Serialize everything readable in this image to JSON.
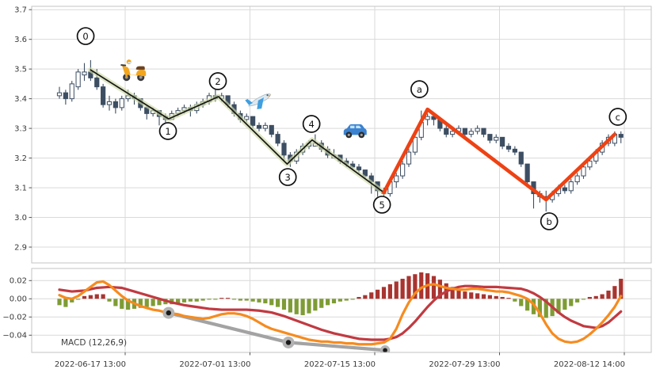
{
  "app": {
    "type": "financial-chart",
    "description": "Candlestick chart with Elliott wave annotation overlay and MACD indicator subpanel"
  },
  "colors": {
    "background": "#ffffff",
    "grid": "#d9d9d9",
    "panel_border": "#c3c3c3",
    "tick_text": "#3a3a3a",
    "candle_up_fill": "#ffffff",
    "candle_down_fill": "#3d4e63",
    "candle_edge": "#3d4e63",
    "impulse_line": "#161616",
    "impulse_band": "#ccd8a4",
    "corrective_line": "#ee4214",
    "macd_line": "#f68b1f",
    "signal_line": "#c13a41",
    "hist_positive": "#a93430",
    "hist_negative": "#7e9c35",
    "gray_line": "#a3a3a3",
    "dot_color": "#1a1a1a",
    "circle_fill": "#ffffff",
    "circle_stroke": "#111111"
  },
  "chart_data": {
    "type": "candlestick",
    "title": "",
    "legend": "none",
    "grid": "on",
    "panels": [
      "price",
      "macd"
    ],
    "price_axis": {
      "ticks": [
        3.7,
        3.6,
        3.5,
        3.4,
        3.3,
        3.2,
        3.1,
        3.0,
        2.9
      ],
      "tick_labels": [
        "3.7",
        "3.6",
        "3.5",
        "3.4",
        "3.3",
        "3.2",
        "3.1",
        "3.0",
        "2.9"
      ],
      "ylim": [
        2.8467,
        3.7112
      ]
    },
    "macd_axis": {
      "ticks": [
        0.02,
        0.0,
        -0.02,
        -0.04
      ],
      "tick_labels": [
        "0.02",
        "0.00",
        "−0.02",
        "−0.04"
      ],
      "ylim": [
        -0.0589,
        0.0333
      ]
    },
    "x_axis": {
      "tick_bar_index": [
        10.54,
        30.54,
        50.54,
        70.54,
        90.54
      ],
      "tick_labels": [
        "2022-06-17 13:00",
        "2022-07-01 13:00",
        "2022-07-15 13:00",
        "2022-07-29 13:00",
        "2022-08-12 14:00"
      ]
    },
    "candles": [
      [
        3.41,
        3.44,
        3.4,
        3.42
      ],
      [
        3.42,
        3.43,
        3.38,
        3.4
      ],
      [
        3.4,
        3.46,
        3.39,
        3.45
      ],
      [
        3.44,
        3.5,
        3.43,
        3.49
      ],
      [
        3.48,
        3.52,
        3.46,
        3.49
      ],
      [
        3.49,
        3.53,
        3.46,
        3.47
      ],
      [
        3.47,
        3.5,
        3.43,
        3.44
      ],
      [
        3.44,
        3.45,
        3.37,
        3.38
      ],
      [
        3.38,
        3.41,
        3.36,
        3.39
      ],
      [
        3.39,
        3.4,
        3.35,
        3.37
      ],
      [
        3.37,
        3.41,
        3.36,
        3.4
      ],
      [
        3.4,
        3.43,
        3.39,
        3.41
      ],
      [
        3.41,
        3.42,
        3.38,
        3.4
      ],
      [
        3.4,
        3.4,
        3.36,
        3.37
      ],
      [
        3.37,
        3.38,
        3.33,
        3.35
      ],
      [
        3.35,
        3.37,
        3.34,
        3.36
      ],
      [
        3.36,
        3.36,
        3.31,
        3.34
      ],
      [
        3.34,
        3.35,
        3.32,
        3.33
      ],
      [
        3.33,
        3.36,
        3.33,
        3.35
      ],
      [
        3.35,
        3.37,
        3.34,
        3.36
      ],
      [
        3.36,
        3.38,
        3.35,
        3.37
      ],
      [
        3.37,
        3.38,
        3.34,
        3.36
      ],
      [
        3.36,
        3.39,
        3.35,
        3.38
      ],
      [
        3.38,
        3.4,
        3.37,
        3.39
      ],
      [
        3.39,
        3.42,
        3.38,
        3.41
      ],
      [
        3.41,
        3.44,
        3.39,
        3.4
      ],
      [
        3.4,
        3.42,
        3.39,
        3.41
      ],
      [
        3.41,
        3.41,
        3.37,
        3.38
      ],
      [
        3.38,
        3.39,
        3.34,
        3.35
      ],
      [
        3.35,
        3.36,
        3.32,
        3.33
      ],
      [
        3.33,
        3.35,
        3.32,
        3.34
      ],
      [
        3.34,
        3.34,
        3.3,
        3.31
      ],
      [
        3.31,
        3.32,
        3.29,
        3.3
      ],
      [
        3.3,
        3.32,
        3.29,
        3.31
      ],
      [
        3.31,
        3.31,
        3.27,
        3.28
      ],
      [
        3.28,
        3.29,
        3.24,
        3.25
      ],
      [
        3.25,
        3.26,
        3.19,
        3.21
      ],
      [
        3.21,
        3.22,
        3.17,
        3.19
      ],
      [
        3.19,
        3.23,
        3.18,
        3.22
      ],
      [
        3.22,
        3.25,
        3.21,
        3.24
      ],
      [
        3.24,
        3.26,
        3.23,
        3.25
      ],
      [
        3.24,
        3.28,
        3.24,
        3.25
      ],
      [
        3.25,
        3.26,
        3.22,
        3.23
      ],
      [
        3.23,
        3.24,
        3.2,
        3.21
      ],
      [
        3.2,
        3.23,
        3.2,
        3.21
      ],
      [
        3.21,
        3.21,
        3.18,
        3.19
      ],
      [
        3.19,
        3.2,
        3.17,
        3.18
      ],
      [
        3.18,
        3.19,
        3.16,
        3.17
      ],
      [
        3.17,
        3.18,
        3.15,
        3.16
      ],
      [
        3.16,
        3.16,
        3.13,
        3.14
      ],
      [
        3.14,
        3.15,
        3.08,
        3.12
      ],
      [
        3.12,
        3.12,
        3.07,
        3.09
      ],
      [
        3.09,
        3.1,
        3.04,
        3.08
      ],
      [
        3.08,
        3.13,
        3.07,
        3.12
      ],
      [
        3.12,
        3.15,
        3.1,
        3.14
      ],
      [
        3.14,
        3.19,
        3.13,
        3.18
      ],
      [
        3.18,
        3.23,
        3.17,
        3.22
      ],
      [
        3.22,
        3.28,
        3.21,
        3.27
      ],
      [
        3.27,
        3.36,
        3.26,
        3.32
      ],
      [
        3.33,
        3.35,
        3.31,
        3.34
      ],
      [
        3.34,
        3.35,
        3.31,
        3.33
      ],
      [
        3.33,
        3.33,
        3.29,
        3.3
      ],
      [
        3.3,
        3.31,
        3.27,
        3.28
      ],
      [
        3.28,
        3.3,
        3.27,
        3.29
      ],
      [
        3.29,
        3.31,
        3.28,
        3.3
      ],
      [
        3.3,
        3.3,
        3.27,
        3.28
      ],
      [
        3.28,
        3.3,
        3.27,
        3.29
      ],
      [
        3.29,
        3.31,
        3.28,
        3.3
      ],
      [
        3.3,
        3.3,
        3.27,
        3.28
      ],
      [
        3.28,
        3.28,
        3.25,
        3.26
      ],
      [
        3.26,
        3.28,
        3.25,
        3.27
      ],
      [
        3.27,
        3.27,
        3.23,
        3.24
      ],
      [
        3.24,
        3.25,
        3.22,
        3.23
      ],
      [
        3.23,
        3.24,
        3.21,
        3.22
      ],
      [
        3.22,
        3.22,
        3.17,
        3.18
      ],
      [
        3.18,
        3.18,
        3.11,
        3.12
      ],
      [
        3.12,
        3.12,
        3.03,
        3.08
      ],
      [
        3.08,
        3.09,
        3.05,
        3.07
      ],
      [
        3.07,
        3.09,
        3.02,
        3.06
      ],
      [
        3.06,
        3.09,
        3.05,
        3.08
      ],
      [
        3.08,
        3.11,
        3.07,
        3.1
      ],
      [
        3.1,
        3.11,
        3.08,
        3.09
      ],
      [
        3.09,
        3.13,
        3.08,
        3.12
      ],
      [
        3.12,
        3.15,
        3.11,
        3.14
      ],
      [
        3.14,
        3.18,
        3.13,
        3.17
      ],
      [
        3.17,
        3.2,
        3.16,
        3.19
      ],
      [
        3.19,
        3.23,
        3.18,
        3.22
      ],
      [
        3.22,
        3.26,
        3.21,
        3.25
      ],
      [
        3.25,
        3.28,
        3.24,
        3.27
      ],
      [
        3.25,
        3.29,
        3.24,
        3.28
      ],
      [
        3.28,
        3.29,
        3.25,
        3.27
      ]
    ],
    "elliott_impulse": {
      "points": [
        [
          5,
          3.497
        ],
        [
          17.5,
          3.332
        ],
        [
          25.5,
          3.407
        ],
        [
          36.5,
          3.18
        ],
        [
          40.5,
          3.261
        ],
        [
          52,
          3.084
        ]
      ]
    },
    "elliott_corrective": {
      "points": [
        [
          52,
          3.084
        ],
        [
          59,
          3.364
        ],
        [
          78,
          3.06
        ],
        [
          89,
          3.28
        ]
      ]
    },
    "wave_labels": [
      {
        "text": "0",
        "i": 4.2,
        "price": 3.611
      },
      {
        "text": "1",
        "i": 17.4,
        "price": 3.291
      },
      {
        "text": "2",
        "i": 25.4,
        "price": 3.459
      },
      {
        "text": "3",
        "i": 36.6,
        "price": 3.136
      },
      {
        "text": "4",
        "i": 40.4,
        "price": 3.315
      },
      {
        "text": "5",
        "i": 51.7,
        "price": 3.043
      },
      {
        "text": "a",
        "i": 57.7,
        "price": 3.432
      },
      {
        "text": "b",
        "i": 78.5,
        "price": 2.987
      },
      {
        "text": "c",
        "i": 89.5,
        "price": 3.339
      }
    ],
    "emojis": [
      {
        "name": "scooter",
        "i": 11.9,
        "price": 3.496
      },
      {
        "name": "airplane",
        "i": 32.0,
        "price": 3.394
      },
      {
        "name": "car",
        "i": 47.4,
        "price": 3.29
      }
    ],
    "macd": {
      "label": "MACD (12,26,9)",
      "params": "12,26,9",
      "histogram": [
        -0.007,
        -0.009,
        -0.004,
        -0.001,
        0.003,
        0.004,
        0.005,
        0.005,
        -0.003,
        -0.008,
        -0.011,
        -0.012,
        -0.011,
        -0.01,
        -0.009,
        -0.008,
        -0.007,
        -0.006,
        -0.006,
        -0.005,
        -0.004,
        -0.003,
        -0.003,
        -0.002,
        -0.001,
        -0.001,
        0.001,
        0.001,
        -0.001,
        -0.002,
        -0.002,
        -0.003,
        -0.004,
        -0.005,
        -0.007,
        -0.009,
        -0.012,
        -0.015,
        -0.017,
        -0.018,
        -0.016,
        -0.013,
        -0.01,
        -0.007,
        -0.005,
        -0.003,
        -0.002,
        -0.001,
        0.002,
        0.004,
        0.007,
        0.01,
        0.013,
        0.016,
        0.019,
        0.022,
        0.025,
        0.027,
        0.029,
        0.028,
        0.025,
        0.021,
        0.017,
        0.013,
        0.01,
        0.008,
        0.007,
        0.006,
        0.005,
        0.004,
        0.003,
        0.002,
        0.001,
        -0.003,
        -0.008,
        -0.013,
        -0.017,
        -0.02,
        -0.021,
        -0.019,
        -0.016,
        -0.012,
        -0.008,
        -0.004,
        -0.001,
        0.002,
        0.003,
        0.005,
        0.009,
        0.014,
        0.022
      ],
      "macd_line": [
        0.004,
        0.001,
        0.0,
        0.003,
        0.008,
        0.013,
        0.018,
        0.019,
        0.015,
        0.009,
        0.003,
        -0.002,
        -0.005,
        -0.008,
        -0.01,
        -0.012,
        -0.013,
        -0.015,
        -0.016,
        -0.017,
        -0.019,
        -0.02,
        -0.021,
        -0.022,
        -0.021,
        -0.019,
        -0.017,
        -0.016,
        -0.016,
        -0.017,
        -0.019,
        -0.022,
        -0.026,
        -0.03,
        -0.033,
        -0.035,
        -0.037,
        -0.039,
        -0.041,
        -0.043,
        -0.045,
        -0.046,
        -0.047,
        -0.047,
        -0.048,
        -0.048,
        -0.049,
        -0.049,
        -0.05,
        -0.05,
        -0.05,
        -0.049,
        -0.048,
        -0.044,
        -0.033,
        -0.017,
        -0.004,
        0.006,
        0.012,
        0.015,
        0.016,
        0.014,
        0.012,
        0.011,
        0.01,
        0.01,
        0.011,
        0.011,
        0.01,
        0.009,
        0.008,
        0.008,
        0.007,
        0.005,
        0.003,
        0.0,
        -0.006,
        -0.016,
        -0.028,
        -0.038,
        -0.044,
        -0.047,
        -0.048,
        -0.047,
        -0.044,
        -0.039,
        -0.033,
        -0.026,
        -0.018,
        -0.009,
        0.003
      ],
      "signal_line": [
        0.01,
        0.009,
        0.008,
        0.0085,
        0.009,
        0.0105,
        0.012,
        0.0125,
        0.013,
        0.0125,
        0.012,
        0.01,
        0.008,
        0.006,
        0.004,
        0.002,
        0.0,
        -0.002,
        -0.004,
        -0.0055,
        -0.007,
        -0.008,
        -0.009,
        -0.01,
        -0.011,
        -0.0115,
        -0.012,
        -0.012,
        -0.012,
        -0.012,
        -0.012,
        -0.0125,
        -0.013,
        -0.014,
        -0.015,
        -0.017,
        -0.019,
        -0.0215,
        -0.024,
        -0.0265,
        -0.029,
        -0.0315,
        -0.034,
        -0.036,
        -0.038,
        -0.0395,
        -0.041,
        -0.0425,
        -0.044,
        -0.0445,
        -0.045,
        -0.045,
        -0.045,
        -0.044,
        -0.042,
        -0.038,
        -0.032,
        -0.025,
        -0.017,
        -0.009,
        -0.002,
        0.004,
        0.008,
        0.011,
        0.013,
        0.014,
        0.014,
        0.0135,
        0.013,
        0.013,
        0.013,
        0.0125,
        0.012,
        0.0115,
        0.011,
        0.009,
        0.006,
        0.002,
        -0.003,
        -0.009,
        -0.015,
        -0.02,
        -0.024,
        -0.027,
        -0.03,
        -0.031,
        -0.032,
        -0.03,
        -0.026,
        -0.02,
        -0.014
      ],
      "gray_line": {
        "points": [
          [
            17.5,
            -0.0155
          ],
          [
            36.7,
            -0.048
          ],
          [
            52.2,
            -0.0565
          ]
        ]
      }
    }
  }
}
